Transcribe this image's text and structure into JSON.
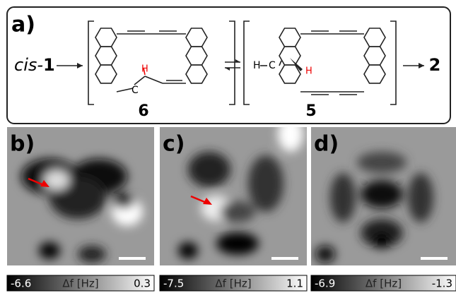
{
  "panel_a": {
    "label": "a)",
    "reactant_prefix": "cis-",
    "reactant_number": "1",
    "intermediate_left": "6",
    "intermediate_right": "5",
    "product": "2",
    "atoms_left": {
      "carbon": "C",
      "hydrogen": "H"
    },
    "atoms_right": {
      "hydrogen_left": "H",
      "carbon": "C",
      "hydrogen_red": "H"
    }
  },
  "panels": [
    {
      "label": "b)",
      "colorbar": {
        "min": "-6.6",
        "unit": "Δf [Hz]",
        "max": "0.3"
      }
    },
    {
      "label": "c)",
      "colorbar": {
        "min": "-7.5",
        "unit": "Δf [Hz]",
        "max": "1.1"
      }
    },
    {
      "label": "d)",
      "colorbar": {
        "min": "-6.9",
        "unit": "Δf [Hz]",
        "max": "-1.3"
      }
    }
  ]
}
